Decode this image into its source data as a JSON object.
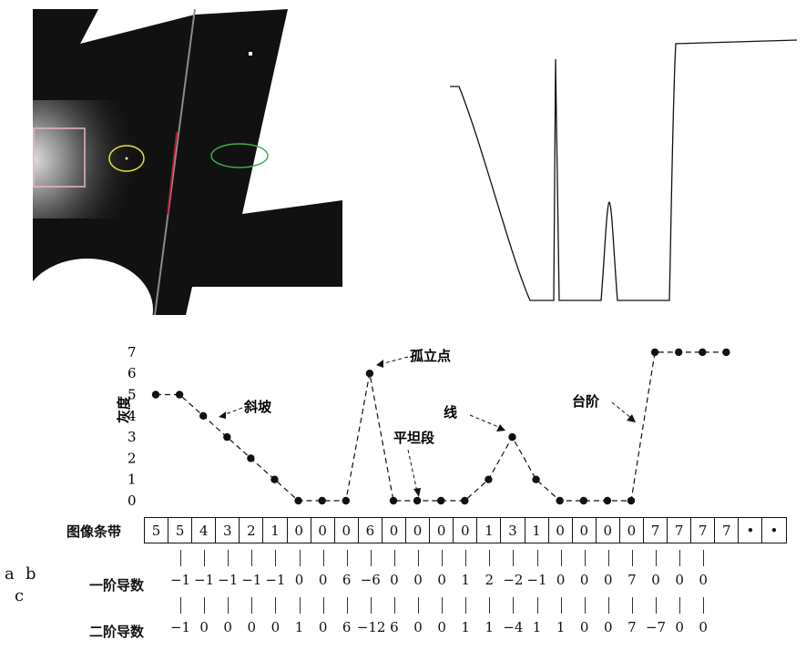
{
  "panel_labels": {
    "a": "a",
    "b": "b",
    "c": "c"
  },
  "chart_data": {
    "type": "line",
    "y_axis": {
      "label": "灰度",
      "ticks": [
        "0",
        "1",
        "2",
        "3",
        "4",
        "5",
        "6",
        "7"
      ],
      "ylim": [
        0,
        7
      ]
    },
    "x": [
      1,
      2,
      3,
      4,
      5,
      6,
      7,
      8,
      9,
      10,
      11,
      12,
      13,
      14,
      15,
      16,
      17,
      18,
      19,
      20,
      21,
      22,
      23,
      24,
      25
    ],
    "values": [
      5,
      5,
      4,
      3,
      2,
      1,
      0,
      0,
      0,
      6,
      0,
      0,
      0,
      0,
      1,
      3,
      1,
      0,
      0,
      0,
      0,
      7,
      7,
      7,
      7
    ],
    "annotations": [
      "斜坡",
      "孤立点",
      "平坦段",
      "线",
      "台阶"
    ]
  },
  "strip": {
    "label": "图像条带",
    "values": [
      "5",
      "5",
      "4",
      "3",
      "2",
      "1",
      "0",
      "0",
      "0",
      "6",
      "0",
      "0",
      "0",
      "0",
      "1",
      "3",
      "1",
      "0",
      "0",
      "0",
      "0",
      "7",
      "7",
      "7",
      "7",
      "•",
      "•"
    ]
  },
  "first_derivative": {
    "label": "一阶导数",
    "values": [
      "−1",
      "−1",
      "−1",
      "−1",
      "−1",
      "0",
      "0",
      "6",
      "−6",
      "0",
      "0",
      "0",
      "1",
      "2",
      "−2",
      "−1",
      "0",
      "0",
      "0",
      "7",
      "0",
      "0",
      "0"
    ]
  },
  "second_derivative": {
    "label": "二阶导数",
    "values": [
      "−1",
      "0",
      "0",
      "0",
      "0",
      "1",
      "0",
      "6",
      "−12",
      "6",
      "0",
      "0",
      "1",
      "1",
      "−4",
      "1",
      "1",
      "0",
      "0",
      "7",
      "−7",
      "0",
      "0"
    ]
  }
}
